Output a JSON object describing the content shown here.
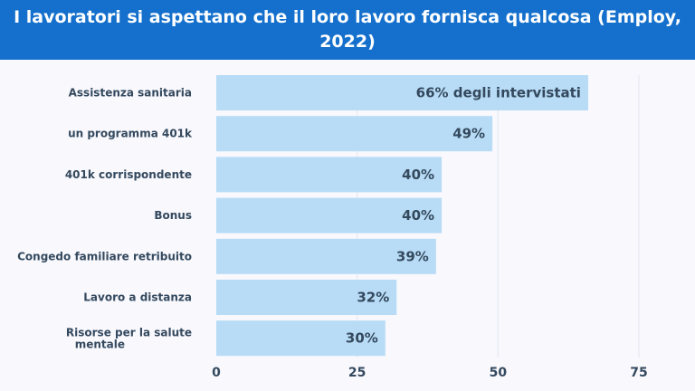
{
  "chart_data": {
    "type": "bar",
    "orientation": "horizontal",
    "title": "I lavoratori si aspettano che il loro lavoro fornisca qualcosa (Employ, 2022)",
    "categories": [
      "Assistenza sanitaria",
      "un programma 401k",
      "401k corrispondente",
      "Bonus",
      "Congedo familiare retribuito",
      "Lavoro a distanza",
      "Risorse per la salute mentale"
    ],
    "values": [
      66,
      49,
      40,
      40,
      39,
      32,
      30
    ],
    "data_labels": [
      "66% degli intervistati",
      "49%",
      "40%",
      "40%",
      "39%",
      "32%",
      "30%"
    ],
    "xlim": [
      0,
      75
    ],
    "xticks": [
      "0",
      "25",
      "50",
      "75"
    ],
    "grid": true,
    "colors": {
      "bar": "#b8dcf6",
      "header": "#1470cc",
      "text": "#34495e",
      "grid": "#e4e6ee"
    }
  }
}
